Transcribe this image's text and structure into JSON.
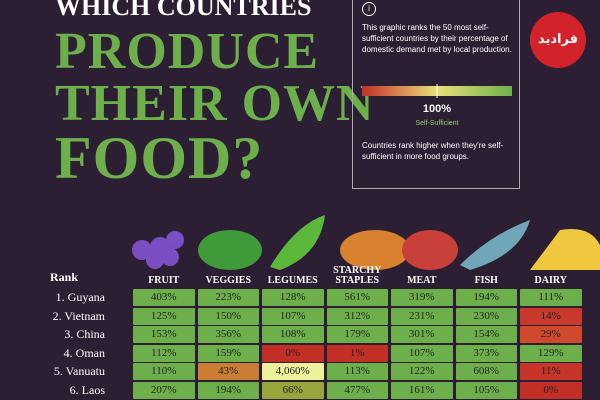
{
  "header": {
    "kicker": "WHICH COUNTRIES",
    "title_lines": [
      "PRODUCE",
      "THEIR OWN",
      "FOOD?"
    ]
  },
  "logo": "فرادید",
  "info": {
    "icon": "i",
    "text": "This graphic ranks the 50 most self-sufficient countries by their percentage of domestic demand met by local production.",
    "scale_value": "100%",
    "scale_label": "Self-Sufficient",
    "note": "Countries rank higher when they're self-sufficient in more food groups."
  },
  "table": {
    "rank_header": "Rank",
    "columns": [
      "FRUIT",
      "VEGGIES",
      "LEGUMES",
      "STARCHY STAPLES",
      "MEAT",
      "FISH",
      "DAIRY"
    ],
    "rows": [
      {
        "rank": "1. Guyana",
        "cells": [
          "403%",
          "223%",
          "128%",
          "561%",
          "319%",
          "194%",
          "111%"
        ],
        "colors": [
          "#6db04b",
          "#6db04b",
          "#6db04b",
          "#6db04b",
          "#6db04b",
          "#6db04b",
          "#6db04b"
        ]
      },
      {
        "rank": "2. Vietnam",
        "cells": [
          "125%",
          "150%",
          "107%",
          "312%",
          "231%",
          "230%",
          "14%"
        ],
        "colors": [
          "#6db04b",
          "#6db04b",
          "#6db04b",
          "#6db04b",
          "#6db04b",
          "#6db04b",
          "#c9392b"
        ]
      },
      {
        "rank": "3. China",
        "cells": [
          "153%",
          "356%",
          "108%",
          "179%",
          "301%",
          "154%",
          "29%"
        ],
        "colors": [
          "#6db04b",
          "#6db04b",
          "#6db04b",
          "#6db04b",
          "#6db04b",
          "#6db04b",
          "#cf4a2c"
        ]
      },
      {
        "rank": "4. Oman",
        "cells": [
          "112%",
          "159%",
          "0%",
          "1%",
          "107%",
          "373%",
          "129%"
        ],
        "colors": [
          "#6db04b",
          "#6db04b",
          "#c22f27",
          "#c22f27",
          "#6db04b",
          "#6db04b",
          "#6db04b"
        ]
      },
      {
        "rank": "5. Vanuatu",
        "cells": [
          "110%",
          "43%",
          "4,060%",
          "113%",
          "122%",
          "608%",
          "11%"
        ],
        "colors": [
          "#6db04b",
          "#cc7d34",
          "#eef09a",
          "#6db04b",
          "#6db04b",
          "#6db04b",
          "#c63528"
        ]
      },
      {
        "rank": "6. Laos",
        "cells": [
          "207%",
          "194%",
          "66%",
          "477%",
          "161%",
          "105%",
          "0%"
        ],
        "colors": [
          "#6db04b",
          "#6db04b",
          "#9aa43c",
          "#6db04b",
          "#6db04b",
          "#6db04b",
          "#c22f27"
        ]
      }
    ]
  }
}
